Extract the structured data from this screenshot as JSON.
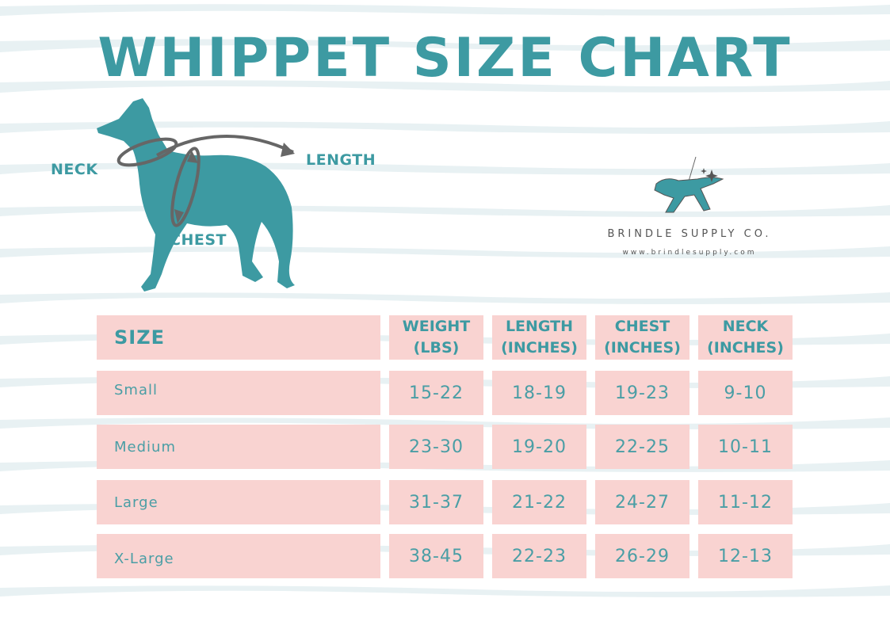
{
  "title": "WHIPPET SIZE CHART",
  "diagram": {
    "neck_label": "NECK",
    "length_label": "LENGTH",
    "chest_label": "CHEST"
  },
  "brand": {
    "name": "BRINDLE SUPPLY CO.",
    "url": "www.brindlesupply.com"
  },
  "table": {
    "headers": [
      {
        "line1": "SIZE",
        "line2": ""
      },
      {
        "line1": "WEIGHT",
        "line2": "(LBS)"
      },
      {
        "line1": "LENGTH",
        "line2": "(INCHES)"
      },
      {
        "line1": "CHEST",
        "line2": "(INCHES)"
      },
      {
        "line1": "NECK",
        "line2": "(INCHES)"
      }
    ],
    "rows": [
      {
        "size": "Small",
        "weight": "15-22",
        "length": "18-19",
        "chest": "19-23",
        "neck": "9-10"
      },
      {
        "size": "Medium",
        "weight": "23-30",
        "length": "19-20",
        "chest": "22-25",
        "neck": "10-11"
      },
      {
        "size": "Large",
        "weight": "31-37",
        "length": "21-22",
        "chest": "24-27",
        "neck": "11-12"
      },
      {
        "size": "X-Large",
        "weight": "38-45",
        "length": "22-23",
        "chest": "26-29",
        "neck": "12-13"
      }
    ]
  },
  "colors": {
    "teal": "#3d9aa2",
    "pink": "#f9d3d1",
    "stripe": "#e6f0f2",
    "arrow": "#666666"
  }
}
